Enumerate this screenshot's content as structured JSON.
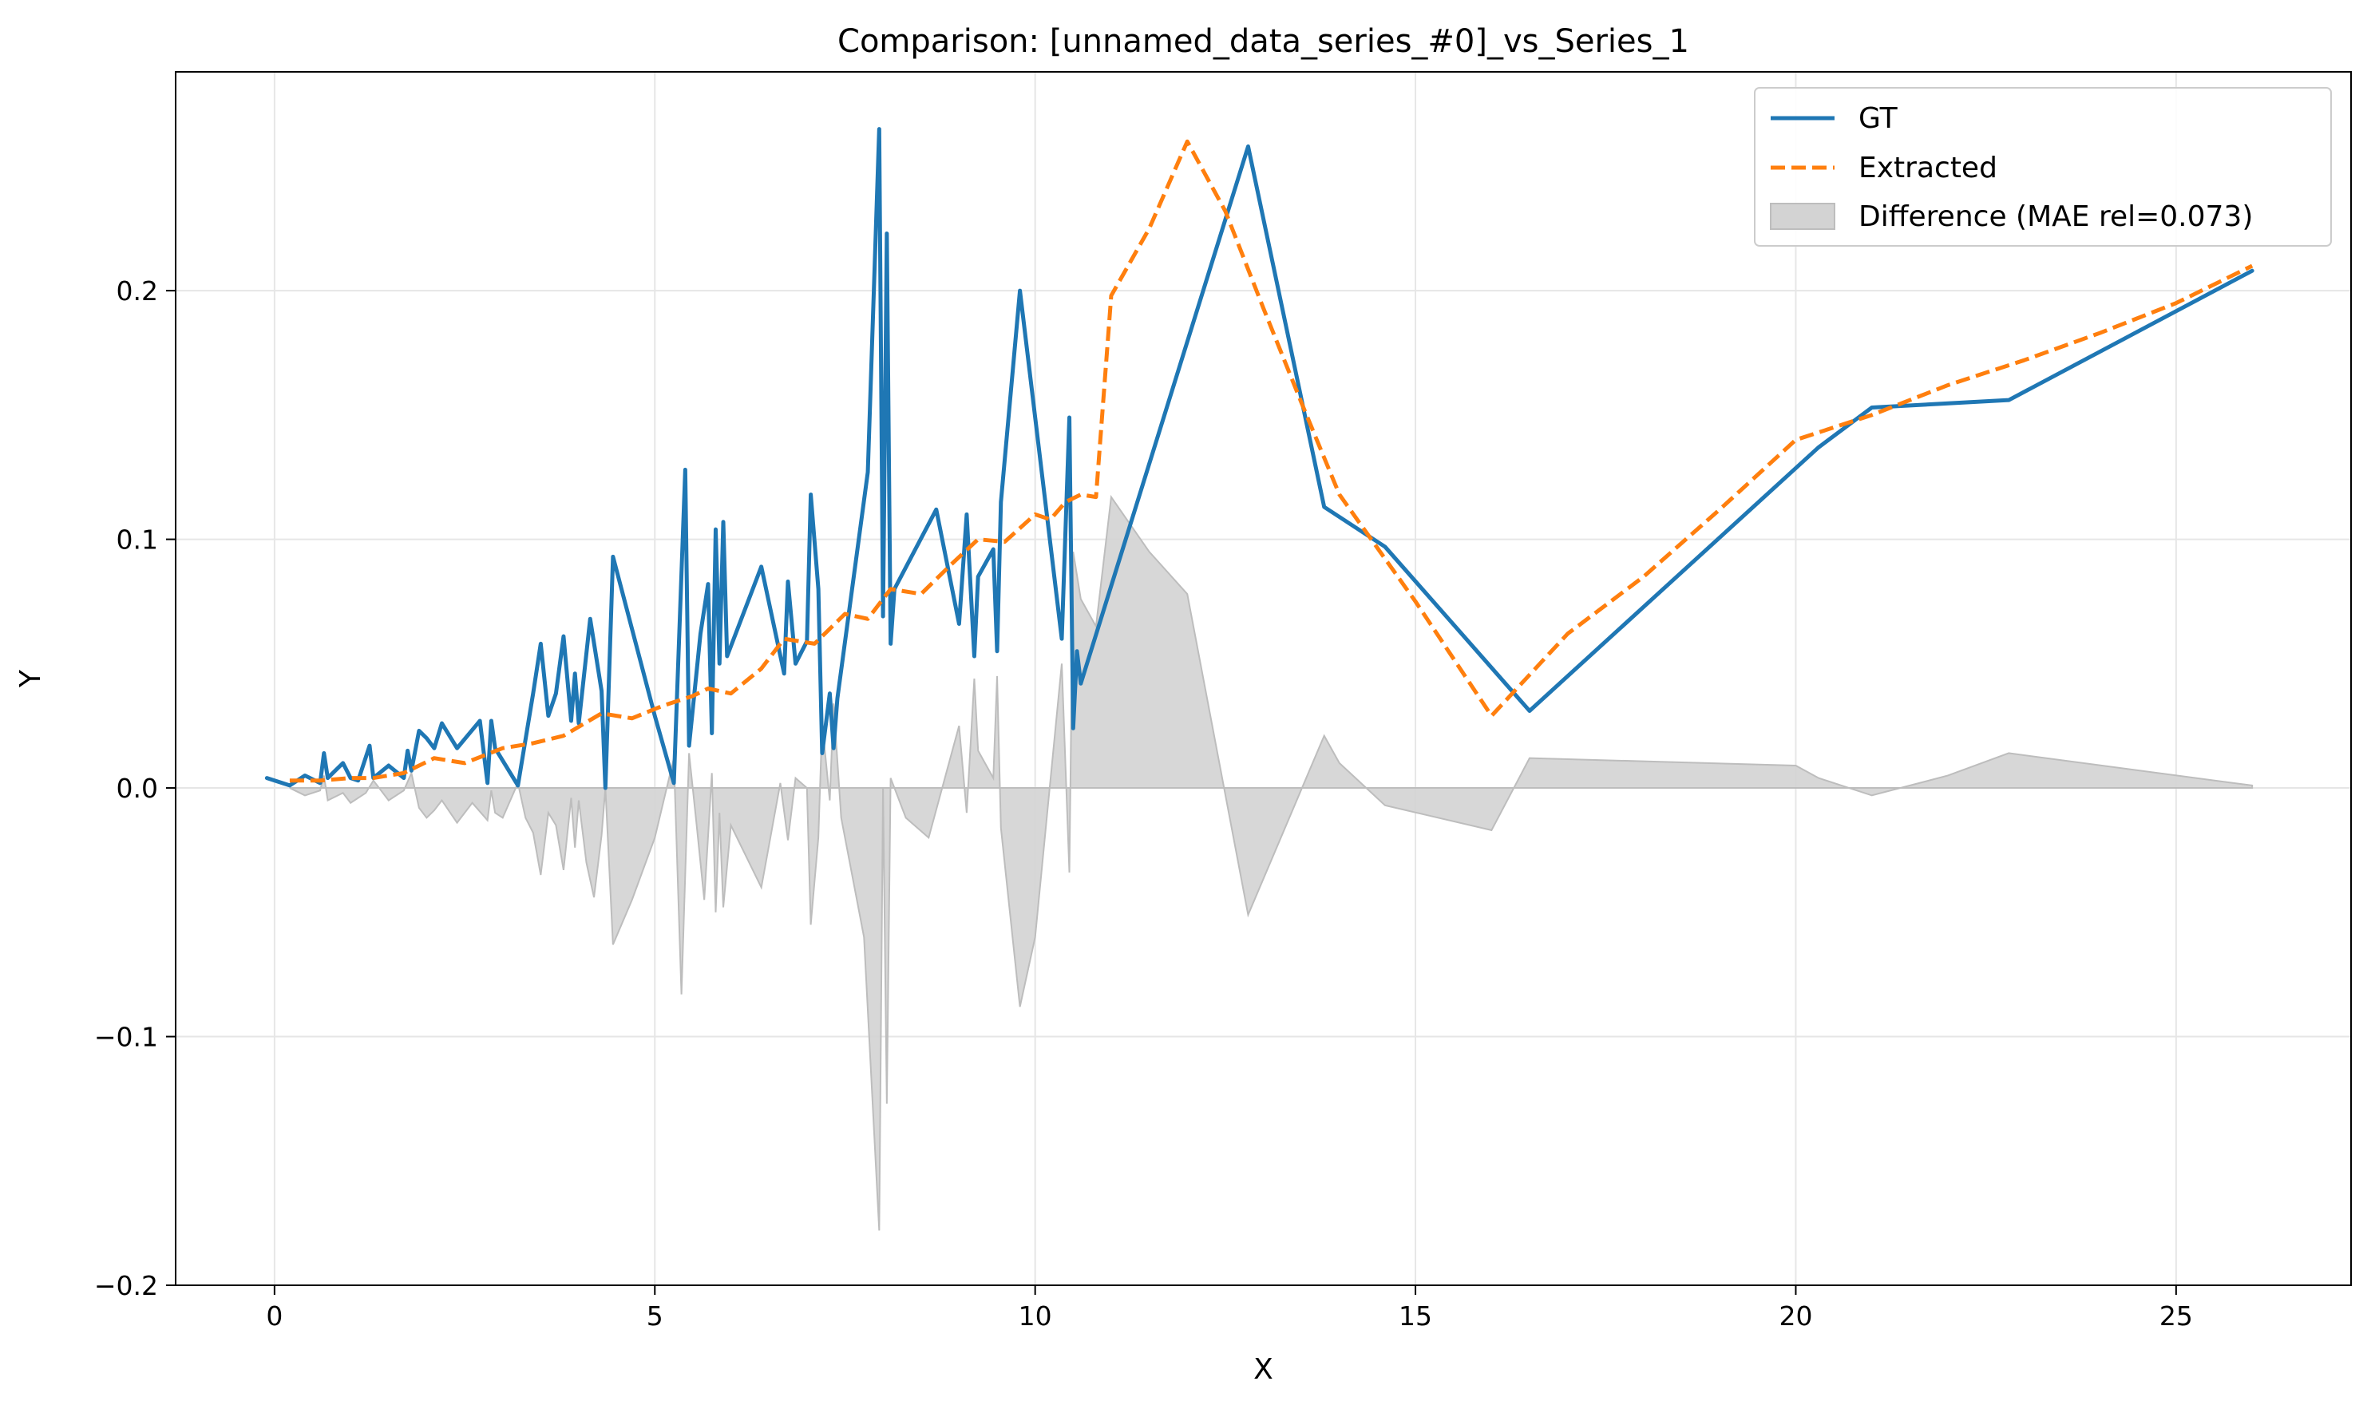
{
  "chart_data": {
    "type": "line",
    "title": "Comparison: [unnamed_data_series_#0]_vs_Series_1",
    "xlabel": "X",
    "ylabel": "Y",
    "xlim": [
      -1.3,
      27.3
    ],
    "ylim": [
      -0.2,
      0.288
    ],
    "xticks": [
      0,
      5,
      10,
      15,
      20,
      25
    ],
    "xtick_labels": [
      "0",
      "5",
      "10",
      "15",
      "20",
      "25"
    ],
    "yticks": [
      -0.2,
      -0.1,
      0.0,
      0.1,
      0.2
    ],
    "ytick_labels": [
      "−0.2",
      "−0.1",
      "0.0",
      "0.1",
      "0.2"
    ],
    "grid": true,
    "legend_position": "top-right",
    "colors": {
      "gt": "#1f77b4",
      "extracted": "#ff7f0e",
      "difference": "#bdbdbd"
    },
    "legend": {
      "gt": "GT",
      "extracted": "Extracted",
      "difference": "Difference (MAE rel=0.073)"
    },
    "series": [
      {
        "key": "gt",
        "style": "solid",
        "points": [
          [
            -0.1,
            0.004
          ],
          [
            0.2,
            0.001
          ],
          [
            0.4,
            0.005
          ],
          [
            0.6,
            0.002
          ],
          [
            0.65,
            0.014
          ],
          [
            0.7,
            0.004
          ],
          [
            0.9,
            0.01
          ],
          [
            1.0,
            0.004
          ],
          [
            1.1,
            0.003
          ],
          [
            1.25,
            0.017
          ],
          [
            1.3,
            0.004
          ],
          [
            1.5,
            0.009
          ],
          [
            1.7,
            0.004
          ],
          [
            1.75,
            0.015
          ],
          [
            1.8,
            0.007
          ],
          [
            1.9,
            0.023
          ],
          [
            2.0,
            0.02
          ],
          [
            2.1,
            0.016
          ],
          [
            2.2,
            0.026
          ],
          [
            2.4,
            0.016
          ],
          [
            2.7,
            0.027
          ],
          [
            2.8,
            0.002
          ],
          [
            2.85,
            0.027
          ],
          [
            2.9,
            0.016
          ],
          [
            3.2,
            0.001
          ],
          [
            3.4,
            0.038
          ],
          [
            3.5,
            0.058
          ],
          [
            3.6,
            0.029
          ],
          [
            3.7,
            0.038
          ],
          [
            3.8,
            0.061
          ],
          [
            3.9,
            0.027
          ],
          [
            3.95,
            0.046
          ],
          [
            4.0,
            0.026
          ],
          [
            4.15,
            0.068
          ],
          [
            4.3,
            0.039
          ],
          [
            4.35,
            0.0
          ],
          [
            4.45,
            0.093
          ],
          [
            5.0,
            0.029
          ],
          [
            5.25,
            0.002
          ],
          [
            5.4,
            0.128
          ],
          [
            5.45,
            0.017
          ],
          [
            5.6,
            0.062
          ],
          [
            5.7,
            0.082
          ],
          [
            5.75,
            0.022
          ],
          [
            5.8,
            0.104
          ],
          [
            5.85,
            0.05
          ],
          [
            5.9,
            0.107
          ],
          [
            5.95,
            0.053
          ],
          [
            6.4,
            0.089
          ],
          [
            6.7,
            0.046
          ],
          [
            6.75,
            0.083
          ],
          [
            6.85,
            0.05
          ],
          [
            7.0,
            0.059
          ],
          [
            7.05,
            0.118
          ],
          [
            7.15,
            0.08
          ],
          [
            7.2,
            0.014
          ],
          [
            7.3,
            0.038
          ],
          [
            7.35,
            0.016
          ],
          [
            7.4,
            0.036
          ],
          [
            7.8,
            0.127
          ],
          [
            7.95,
            0.265
          ],
          [
            8.0,
            0.069
          ],
          [
            8.05,
            0.223
          ],
          [
            8.1,
            0.058
          ],
          [
            8.15,
            0.08
          ],
          [
            8.7,
            0.112
          ],
          [
            9.0,
            0.066
          ],
          [
            9.1,
            0.11
          ],
          [
            9.2,
            0.053
          ],
          [
            9.25,
            0.085
          ],
          [
            9.45,
            0.096
          ],
          [
            9.5,
            0.055
          ],
          [
            9.55,
            0.115
          ],
          [
            9.8,
            0.2
          ],
          [
            10.35,
            0.06
          ],
          [
            10.45,
            0.149
          ],
          [
            10.5,
            0.024
          ],
          [
            10.55,
            0.055
          ],
          [
            10.6,
            0.042
          ],
          [
            12.8,
            0.258
          ],
          [
            13.8,
            0.113
          ],
          [
            14.6,
            0.097
          ],
          [
            16.5,
            0.031
          ],
          [
            20.3,
            0.137
          ],
          [
            21.0,
            0.153
          ],
          [
            22.8,
            0.156
          ],
          [
            26.0,
            0.208
          ]
        ]
      },
      {
        "key": "extracted",
        "style": "dashed",
        "points": [
          [
            0.2,
            0.003
          ],
          [
            0.6,
            0.003
          ],
          [
            1.0,
            0.004
          ],
          [
            1.3,
            0.004
          ],
          [
            1.7,
            0.006
          ],
          [
            2.1,
            0.012
          ],
          [
            2.5,
            0.01
          ],
          [
            3.0,
            0.016
          ],
          [
            3.4,
            0.018
          ],
          [
            3.8,
            0.021
          ],
          [
            4.3,
            0.03
          ],
          [
            4.7,
            0.028
          ],
          [
            5.1,
            0.033
          ],
          [
            5.5,
            0.037
          ],
          [
            5.7,
            0.04
          ],
          [
            6.0,
            0.038
          ],
          [
            6.4,
            0.048
          ],
          [
            6.7,
            0.06
          ],
          [
            7.1,
            0.058
          ],
          [
            7.5,
            0.07
          ],
          [
            7.8,
            0.068
          ],
          [
            8.1,
            0.08
          ],
          [
            8.5,
            0.078
          ],
          [
            8.9,
            0.09
          ],
          [
            9.25,
            0.1
          ],
          [
            9.6,
            0.099
          ],
          [
            10.0,
            0.11
          ],
          [
            10.2,
            0.108
          ],
          [
            10.4,
            0.115
          ],
          [
            10.6,
            0.118
          ],
          [
            10.8,
            0.117
          ],
          [
            11.0,
            0.198
          ],
          [
            11.5,
            0.225
          ],
          [
            12.0,
            0.26
          ],
          [
            12.5,
            0.232
          ],
          [
            13.0,
            0.193
          ],
          [
            13.5,
            0.155
          ],
          [
            14.0,
            0.118
          ],
          [
            15.0,
            0.075
          ],
          [
            16.0,
            0.029
          ],
          [
            17.0,
            0.062
          ],
          [
            18.0,
            0.085
          ],
          [
            19.0,
            0.112
          ],
          [
            20.0,
            0.14
          ],
          [
            21.0,
            0.15
          ],
          [
            22.0,
            0.162
          ],
          [
            23.0,
            0.172
          ],
          [
            24.0,
            0.183
          ],
          [
            25.0,
            0.195
          ],
          [
            26.0,
            0.21
          ]
        ]
      }
    ],
    "difference_points": [
      [
        0.2,
        0.0
      ],
      [
        0.4,
        -0.003
      ],
      [
        0.6,
        -0.001
      ],
      [
        0.65,
        0.005
      ],
      [
        0.7,
        -0.005
      ],
      [
        0.9,
        -0.002
      ],
      [
        1.0,
        -0.006
      ],
      [
        1.2,
        -0.002
      ],
      [
        1.3,
        0.003
      ],
      [
        1.5,
        -0.005
      ],
      [
        1.7,
        -0.001
      ],
      [
        1.8,
        0.006
      ],
      [
        1.9,
        -0.008
      ],
      [
        2.0,
        -0.012
      ],
      [
        2.1,
        -0.009
      ],
      [
        2.2,
        -0.005
      ],
      [
        2.4,
        -0.014
      ],
      [
        2.6,
        -0.006
      ],
      [
        2.8,
        -0.013
      ],
      [
        2.85,
        -0.001
      ],
      [
        2.9,
        -0.01
      ],
      [
        3.0,
        -0.012
      ],
      [
        3.2,
        0.002
      ],
      [
        3.3,
        -0.012
      ],
      [
        3.4,
        -0.018
      ],
      [
        3.5,
        -0.035
      ],
      [
        3.6,
        -0.01
      ],
      [
        3.7,
        -0.015
      ],
      [
        3.8,
        -0.033
      ],
      [
        3.9,
        -0.004
      ],
      [
        3.95,
        -0.024
      ],
      [
        4.0,
        -0.005
      ],
      [
        4.1,
        -0.03
      ],
      [
        4.2,
        -0.044
      ],
      [
        4.3,
        -0.019
      ],
      [
        4.35,
        0.0
      ],
      [
        4.45,
        -0.063
      ],
      [
        4.7,
        -0.045
      ],
      [
        5.0,
        -0.02
      ],
      [
        5.25,
        0.012
      ],
      [
        5.35,
        -0.083
      ],
      [
        5.45,
        0.014
      ],
      [
        5.55,
        -0.015
      ],
      [
        5.65,
        -0.045
      ],
      [
        5.75,
        0.006
      ],
      [
        5.8,
        -0.05
      ],
      [
        5.85,
        -0.01
      ],
      [
        5.9,
        -0.048
      ],
      [
        6.0,
        -0.015
      ],
      [
        6.4,
        -0.04
      ],
      [
        6.65,
        0.002
      ],
      [
        6.75,
        -0.021
      ],
      [
        6.85,
        0.004
      ],
      [
        7.0,
        0.0
      ],
      [
        7.05,
        -0.055
      ],
      [
        7.15,
        -0.02
      ],
      [
        7.2,
        0.026
      ],
      [
        7.3,
        -0.005
      ],
      [
        7.35,
        0.034
      ],
      [
        7.45,
        -0.012
      ],
      [
        7.75,
        -0.06
      ],
      [
        7.95,
        -0.178
      ],
      [
        8.0,
        0.0
      ],
      [
        8.05,
        -0.127
      ],
      [
        8.1,
        0.004
      ],
      [
        8.15,
        0.0
      ],
      [
        8.3,
        -0.012
      ],
      [
        8.6,
        -0.02
      ],
      [
        9.0,
        0.025
      ],
      [
        9.1,
        -0.01
      ],
      [
        9.2,
        0.044
      ],
      [
        9.25,
        0.015
      ],
      [
        9.45,
        0.004
      ],
      [
        9.5,
        0.045
      ],
      [
        9.55,
        -0.016
      ],
      [
        9.8,
        -0.088
      ],
      [
        10.0,
        -0.06
      ],
      [
        10.35,
        0.05
      ],
      [
        10.45,
        -0.034
      ],
      [
        10.5,
        0.095
      ],
      [
        10.6,
        0.076
      ],
      [
        10.8,
        0.065
      ],
      [
        11.0,
        0.117
      ],
      [
        11.5,
        0.095
      ],
      [
        12.0,
        0.078
      ],
      [
        12.8,
        -0.051
      ],
      [
        13.8,
        0.021
      ],
      [
        14.0,
        0.01
      ],
      [
        14.6,
        -0.007
      ],
      [
        16.0,
        -0.017
      ],
      [
        16.5,
        0.012
      ],
      [
        20.0,
        0.009
      ],
      [
        20.3,
        0.004
      ],
      [
        21.0,
        -0.003
      ],
      [
        22.0,
        0.005
      ],
      [
        22.8,
        0.014
      ],
      [
        26.0,
        0.001
      ]
    ]
  }
}
